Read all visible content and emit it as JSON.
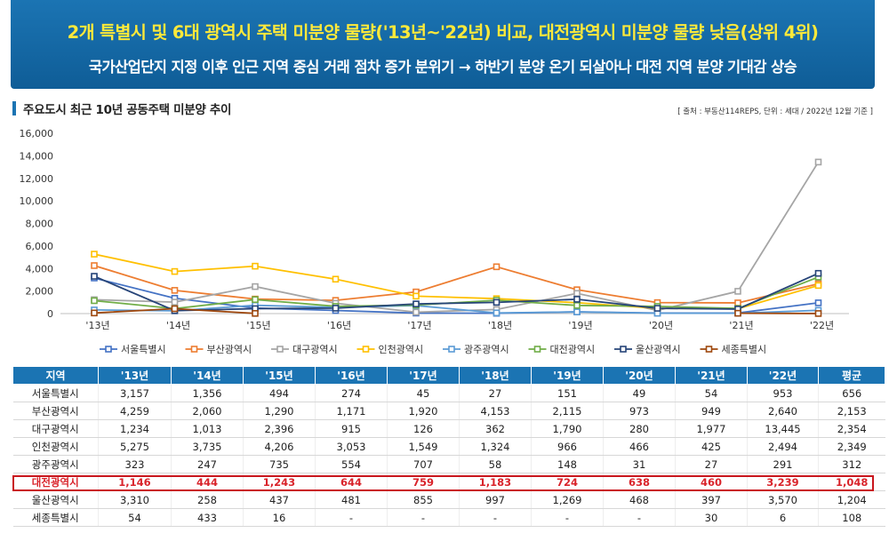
{
  "header": {
    "title": "2개 특별시 및 6대 광역시 주택 미분양 물량('13년~'22년) 비교, 대전광역시 미분양 물량 낮음(상위 4위)",
    "subtitle": "국가산업단지 지정 이후 인근 지역 중심 거래 점차 증가 분위기 → 하반기 분양 온기 되살아나 대전 지역 분양 기대감 상승"
  },
  "section": {
    "title": "주요도시 최근 10년 공동주택 미분양 추이",
    "source": "[ 출처 : 부동산114REPS, 단위 : 세대 / 2022년 12월 기준 ]"
  },
  "chart_data": {
    "type": "line",
    "title": "주요도시 최근 10년 공동주택 미분양 추이",
    "x": [
      "'13년",
      "'14년",
      "'15년",
      "'16년",
      "'17년",
      "'18년",
      "'19년",
      "'20년",
      "'21년",
      "'22년"
    ],
    "y_ticks": [
      "0",
      "2,000",
      "4,000",
      "6,000",
      "8,000",
      "10,000",
      "12,000",
      "14,000",
      "16,000"
    ],
    "ylim": [
      0,
      16000
    ],
    "grid": false,
    "legend_position": "bottom",
    "series": [
      {
        "name": "서울특별시",
        "color": "#4472c4",
        "values": [
          3157,
          1356,
          494,
          274,
          45,
          27,
          151,
          49,
          54,
          953
        ]
      },
      {
        "name": "부산광역시",
        "color": "#ed7d31",
        "values": [
          4259,
          2060,
          1290,
          1171,
          1920,
          4153,
          2115,
          973,
          949,
          2640
        ]
      },
      {
        "name": "대구광역시",
        "color": "#a5a5a5",
        "values": [
          1234,
          1013,
          2396,
          915,
          126,
          362,
          1790,
          280,
          1977,
          13445
        ]
      },
      {
        "name": "인천광역시",
        "color": "#ffc000",
        "values": [
          5275,
          3735,
          4206,
          3053,
          1549,
          1324,
          966,
          466,
          425,
          2494
        ]
      },
      {
        "name": "광주광역시",
        "color": "#5b9bd5",
        "values": [
          323,
          247,
          735,
          554,
          707,
          58,
          148,
          31,
          27,
          291
        ]
      },
      {
        "name": "대전광역시",
        "color": "#70ad47",
        "values": [
          1146,
          444,
          1243,
          644,
          759,
          1183,
          724,
          638,
          460,
          3239
        ]
      },
      {
        "name": "울산광역시",
        "color": "#264478",
        "values": [
          3310,
          258,
          437,
          481,
          855,
          997,
          1269,
          468,
          397,
          3570
        ]
      },
      {
        "name": "세종특별시",
        "color": "#9e480e",
        "values": [
          54,
          433,
          16,
          null,
          null,
          null,
          null,
          null,
          30,
          6
        ]
      }
    ]
  },
  "table": {
    "headers": [
      "지역",
      "'13년",
      "'14년",
      "'15년",
      "'16년",
      "'17년",
      "'18년",
      "'19년",
      "'20년",
      "'21년",
      "'22년",
      "평균"
    ],
    "rows": [
      [
        "서울특별시",
        "3,157",
        "1,356",
        "494",
        "274",
        "45",
        "27",
        "151",
        "49",
        "54",
        "953",
        "656"
      ],
      [
        "부산광역시",
        "4,259",
        "2,060",
        "1,290",
        "1,171",
        "1,920",
        "4,153",
        "2,115",
        "973",
        "949",
        "2,640",
        "2,153"
      ],
      [
        "대구광역시",
        "1,234",
        "1,013",
        "2,396",
        "915",
        "126",
        "362",
        "1,790",
        "280",
        "1,977",
        "13,445",
        "2,354"
      ],
      [
        "인천광역시",
        "5,275",
        "3,735",
        "4,206",
        "3,053",
        "1,549",
        "1,324",
        "966",
        "466",
        "425",
        "2,494",
        "2,349"
      ],
      [
        "광주광역시",
        "323",
        "247",
        "735",
        "554",
        "707",
        "58",
        "148",
        "31",
        "27",
        "291",
        "312"
      ],
      [
        "대전광역시",
        "1,146",
        "444",
        "1,243",
        "644",
        "759",
        "1,183",
        "724",
        "638",
        "460",
        "3,239",
        "1,048"
      ],
      [
        "울산광역시",
        "3,310",
        "258",
        "437",
        "481",
        "855",
        "997",
        "1,269",
        "468",
        "397",
        "3,570",
        "1,204"
      ],
      [
        "세종특별시",
        "54",
        "433",
        "16",
        "-",
        "-",
        "-",
        "-",
        "-",
        "30",
        "6",
        "108"
      ]
    ],
    "highlight_row": 5,
    "highlight_color": "#c9161d"
  }
}
